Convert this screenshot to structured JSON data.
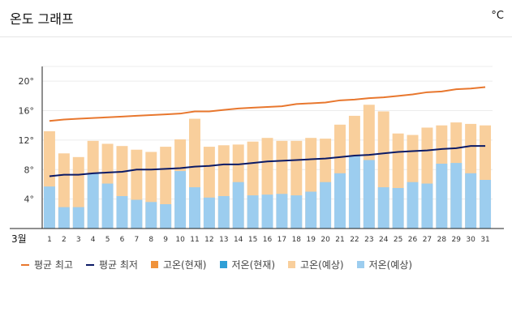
{
  "header": {
    "title": "온도 그래프",
    "unit": "°C"
  },
  "legend": [
    {
      "label": "평균 최고",
      "kind": "line",
      "color": "#e8772e"
    },
    {
      "label": "평균 최저",
      "kind": "line",
      "color": "#0b1a66"
    },
    {
      "label": "고온(현재)",
      "kind": "box",
      "color": "#f0923a"
    },
    {
      "label": "저온(현재)",
      "kind": "box",
      "color": "#2f9fd6"
    },
    {
      "label": "고온(예상)",
      "kind": "box",
      "color": "#f9cf9c"
    },
    {
      "label": "저온(예상)",
      "kind": "box",
      "color": "#9ccdef"
    }
  ],
  "chart_data": {
    "type": "bar",
    "title": "온도 그래프",
    "month_label": "3월",
    "ylim": [
      0,
      22
    ],
    "yticks": [
      {
        "value": 4,
        "label": "4°"
      },
      {
        "value": 8,
        "label": "8°"
      },
      {
        "value": 12,
        "label": "12°"
      },
      {
        "value": 16,
        "label": "16°"
      },
      {
        "value": 20,
        "label": "20°"
      }
    ],
    "categories": [
      "1",
      "2",
      "3",
      "4",
      "5",
      "6",
      "7",
      "8",
      "9",
      "10",
      "11",
      "12",
      "13",
      "14",
      "15",
      "16",
      "17",
      "18",
      "19",
      "20",
      "21",
      "22",
      "23",
      "24",
      "25",
      "26",
      "27",
      "28",
      "29",
      "30",
      "31"
    ],
    "series": [
      {
        "name": "고온(예상)",
        "color": "#f9cf9c",
        "values": [
          13.2,
          10.2,
          9.7,
          11.9,
          11.5,
          11.2,
          10.7,
          10.4,
          11.1,
          12.1,
          14.9,
          11.1,
          11.3,
          11.4,
          11.8,
          12.3,
          11.9,
          11.9,
          12.3,
          12.2,
          14.1,
          15.3,
          16.8,
          15.9,
          12.9,
          12.7,
          13.7,
          14.0,
          14.4,
          14.2,
          14.0
        ]
      },
      {
        "name": "저온(예상)",
        "color": "#9ccdef",
        "values": [
          5.7,
          2.9,
          2.9,
          7.5,
          6.1,
          4.4,
          3.9,
          3.6,
          3.3,
          7.8,
          5.6,
          4.2,
          4.4,
          6.3,
          4.5,
          4.6,
          4.7,
          4.5,
          5.0,
          6.3,
          7.5,
          9.9,
          9.3,
          5.6,
          5.5,
          6.3,
          6.1,
          8.8,
          8.9,
          7.5,
          6.6
        ]
      },
      {
        "name": "평균 최고",
        "color": "#e8772e",
        "values": [
          14.6,
          14.8,
          14.9,
          15.0,
          15.1,
          15.2,
          15.3,
          15.4,
          15.5,
          15.6,
          15.9,
          15.9,
          16.1,
          16.3,
          16.4,
          16.5,
          16.6,
          16.9,
          17.0,
          17.1,
          17.4,
          17.5,
          17.7,
          17.8,
          18.0,
          18.2,
          18.5,
          18.6,
          18.9,
          19.0,
          19.2
        ]
      },
      {
        "name": "평균 최저",
        "color": "#0b1a66",
        "values": [
          7.1,
          7.3,
          7.3,
          7.5,
          7.6,
          7.7,
          8.0,
          8.0,
          8.1,
          8.2,
          8.4,
          8.5,
          8.7,
          8.7,
          8.9,
          9.1,
          9.2,
          9.3,
          9.4,
          9.5,
          9.7,
          9.9,
          10.0,
          10.2,
          10.4,
          10.5,
          10.6,
          10.8,
          10.9,
          11.2,
          11.2
        ]
      }
    ]
  }
}
